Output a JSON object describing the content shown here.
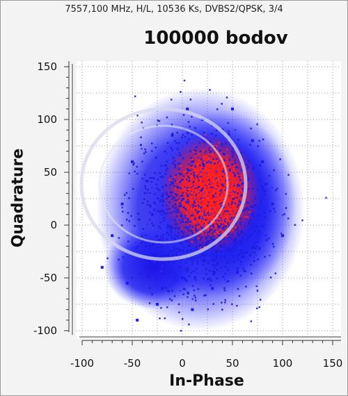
{
  "header": {
    "info": "7557,100 MHz, H/L, 10536 Ks, DVBS2/QPSK, 3/4"
  },
  "chart_data": {
    "type": "scatter",
    "title": "100000 bodov",
    "xlabel": "In-Phase",
    "ylabel": "Quadrature",
    "xlim": [
      -100,
      150
    ],
    "ylim": [
      -100,
      150
    ],
    "xticks": [
      "-100",
      "-50",
      "0",
      "50",
      "100",
      "150"
    ],
    "yticks": [
      "150",
      "100",
      "50",
      "0",
      "-50",
      "-100"
    ],
    "grid": true,
    "point_count": 100000,
    "series": [
      {
        "color": "#1c1cf0",
        "values": [
          [
            20,
            25
          ],
          [
            10,
            60
          ],
          [
            40,
            90
          ],
          [
            60,
            40
          ],
          [
            70,
            10
          ],
          [
            30,
            -20
          ],
          [
            -10,
            40
          ],
          [
            -30,
            10
          ],
          [
            -40,
            -30
          ],
          [
            -20,
            -60
          ],
          [
            0,
            -50
          ],
          [
            30,
            -60
          ],
          [
            60,
            -30
          ],
          [
            80,
            60
          ],
          [
            50,
            110
          ],
          [
            20,
            100
          ],
          [
            -10,
            85
          ],
          [
            -50,
            60
          ],
          [
            -60,
            20
          ],
          [
            -70,
            -10
          ],
          [
            -55,
            -55
          ],
          [
            -25,
            -75
          ],
          [
            10,
            -80
          ],
          [
            55,
            -45
          ],
          [
            90,
            20
          ],
          [
            100,
            -10
          ],
          [
            -80,
            -40
          ],
          [
            -45,
            -90
          ],
          [
            5,
            110
          ],
          [
            70,
            80
          ]
        ]
      },
      {
        "color": "#ff2020",
        "values": [
          [
            25,
            30
          ],
          [
            35,
            40
          ],
          [
            15,
            20
          ],
          [
            40,
            15
          ],
          [
            30,
            55
          ],
          [
            20,
            45
          ],
          [
            45,
            35
          ],
          [
            10,
            30
          ],
          [
            30,
            10
          ],
          [
            25,
            25
          ]
        ]
      }
    ]
  }
}
